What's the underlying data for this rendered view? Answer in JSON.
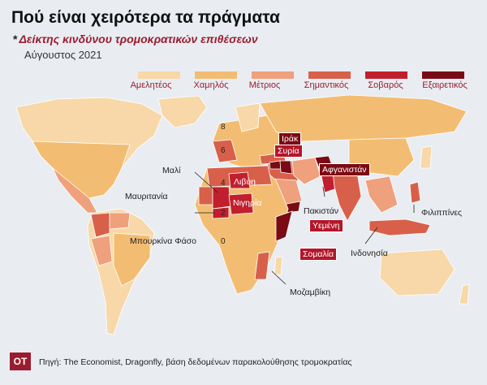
{
  "title": "Πού είναι χειρότερα τα πράγματα",
  "subtitle_star": "*",
  "subtitle": "Δείκτης κινδύνου τρομοκρατικών επιθέσεων",
  "date": "Αύγουστος 2021",
  "legend": [
    {
      "label": "Αμελητέος",
      "color": "#f8d8a8"
    },
    {
      "label": "Χαμηλός",
      "color": "#f2bd72"
    },
    {
      "label": "Μέτριος",
      "color": "#efa07c"
    },
    {
      "label": "Σημαντικός",
      "color": "#d8604a"
    },
    {
      "label": "Σοβαρός",
      "color": "#c11f2d"
    },
    {
      "label": "Εξαιρετικός",
      "color": "#7a0a14"
    }
  ],
  "labels": {
    "syria": "Συρία",
    "iraq": "Ιράκ",
    "afghanistan": "Αφγανιστάν",
    "libya": "Λιβύη",
    "nigeria": "Νιγηρία",
    "yemen": "Υεμένη",
    "somalia": "Σομαλία",
    "mali": "Μαλί",
    "mauritania": "Μαυριτανία",
    "burkina": "Μπουρκίνα Φάσο",
    "pakistan": "Πακιστάν",
    "india": "Ινδονησία",
    "philippines": "Φιλιππίνες",
    "mozambique": "Μοζαμβίκη"
  },
  "numbers": {
    "n8": "8",
    "n6": "6",
    "n4": "4",
    "n2": "2",
    "n0": "0"
  },
  "logo": "OT",
  "source": "Πηγή: The Economist, Dragonfly, βάση δεδομένων παρακολούθησης τρομοκρατίας"
}
